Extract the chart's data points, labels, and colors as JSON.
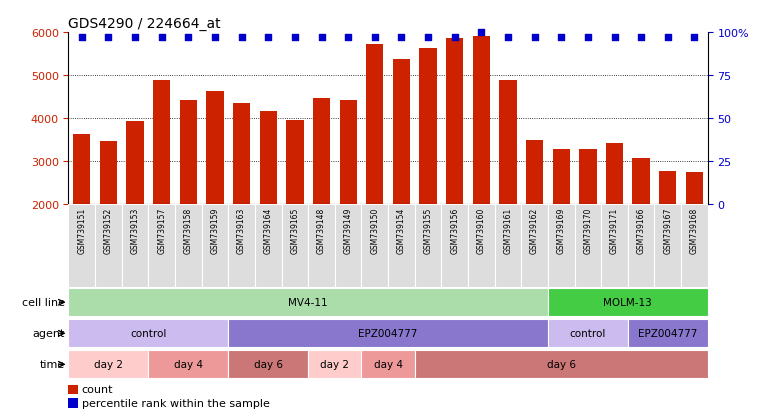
{
  "title": "GDS4290 / 224664_at",
  "samples": [
    "GSM739151",
    "GSM739152",
    "GSM739153",
    "GSM739157",
    "GSM739158",
    "GSM739159",
    "GSM739163",
    "GSM739164",
    "GSM739165",
    "GSM739148",
    "GSM739149",
    "GSM739150",
    "GSM739154",
    "GSM739155",
    "GSM739156",
    "GSM739160",
    "GSM739161",
    "GSM739162",
    "GSM739169",
    "GSM739170",
    "GSM739171",
    "GSM739166",
    "GSM739167",
    "GSM739168"
  ],
  "counts": [
    3620,
    3470,
    3920,
    4890,
    4410,
    4630,
    4350,
    4170,
    3950,
    4470,
    4410,
    5730,
    5370,
    5630,
    5870,
    5910,
    4880,
    3480,
    3270,
    3290,
    3430,
    3070,
    2760,
    2740
  ],
  "percentile_ranks": [
    97,
    97,
    97,
    97,
    97,
    97,
    97,
    97,
    97,
    97,
    97,
    97,
    97,
    97,
    97,
    100,
    97,
    97,
    97,
    97,
    97,
    97,
    97,
    97
  ],
  "bar_color": "#cc2200",
  "dot_color": "#0000cc",
  "ylim_left": [
    2000,
    6000
  ],
  "ylim_right": [
    0,
    100
  ],
  "yticks_left": [
    2000,
    3000,
    4000,
    5000,
    6000
  ],
  "yticks_right": [
    0,
    25,
    50,
    75,
    100
  ],
  "cell_line_groups": [
    {
      "label": "MV4-11",
      "start": 0,
      "end": 18,
      "color": "#aaddaa"
    },
    {
      "label": "MOLM-13",
      "start": 18,
      "end": 24,
      "color": "#44cc44"
    }
  ],
  "agent_merged": [
    {
      "label": "control",
      "start": 0,
      "end": 6,
      "color": "#ccbbee"
    },
    {
      "label": "EPZ004777",
      "start": 6,
      "end": 18,
      "color": "#8877cc"
    },
    {
      "label": "control",
      "start": 18,
      "end": 21,
      "color": "#ccbbee"
    },
    {
      "label": "EPZ004777",
      "start": 21,
      "end": 24,
      "color": "#8877cc"
    }
  ],
  "time_groups": [
    {
      "label": "day 2",
      "start": 0,
      "end": 3,
      "color": "#ffcccc"
    },
    {
      "label": "day 4",
      "start": 3,
      "end": 6,
      "color": "#ee9999"
    },
    {
      "label": "day 6",
      "start": 6,
      "end": 9,
      "color": "#cc7777"
    },
    {
      "label": "day 2",
      "start": 9,
      "end": 11,
      "color": "#ffcccc"
    },
    {
      "label": "day 4",
      "start": 11,
      "end": 13,
      "color": "#ee9999"
    },
    {
      "label": "day 6",
      "start": 13,
      "end": 24,
      "color": "#cc7777"
    }
  ],
  "legend_count_color": "#cc2200",
  "legend_dot_color": "#0000cc",
  "label_bg_color": "#dddddd",
  "chart_bg_color": "#ffffff"
}
